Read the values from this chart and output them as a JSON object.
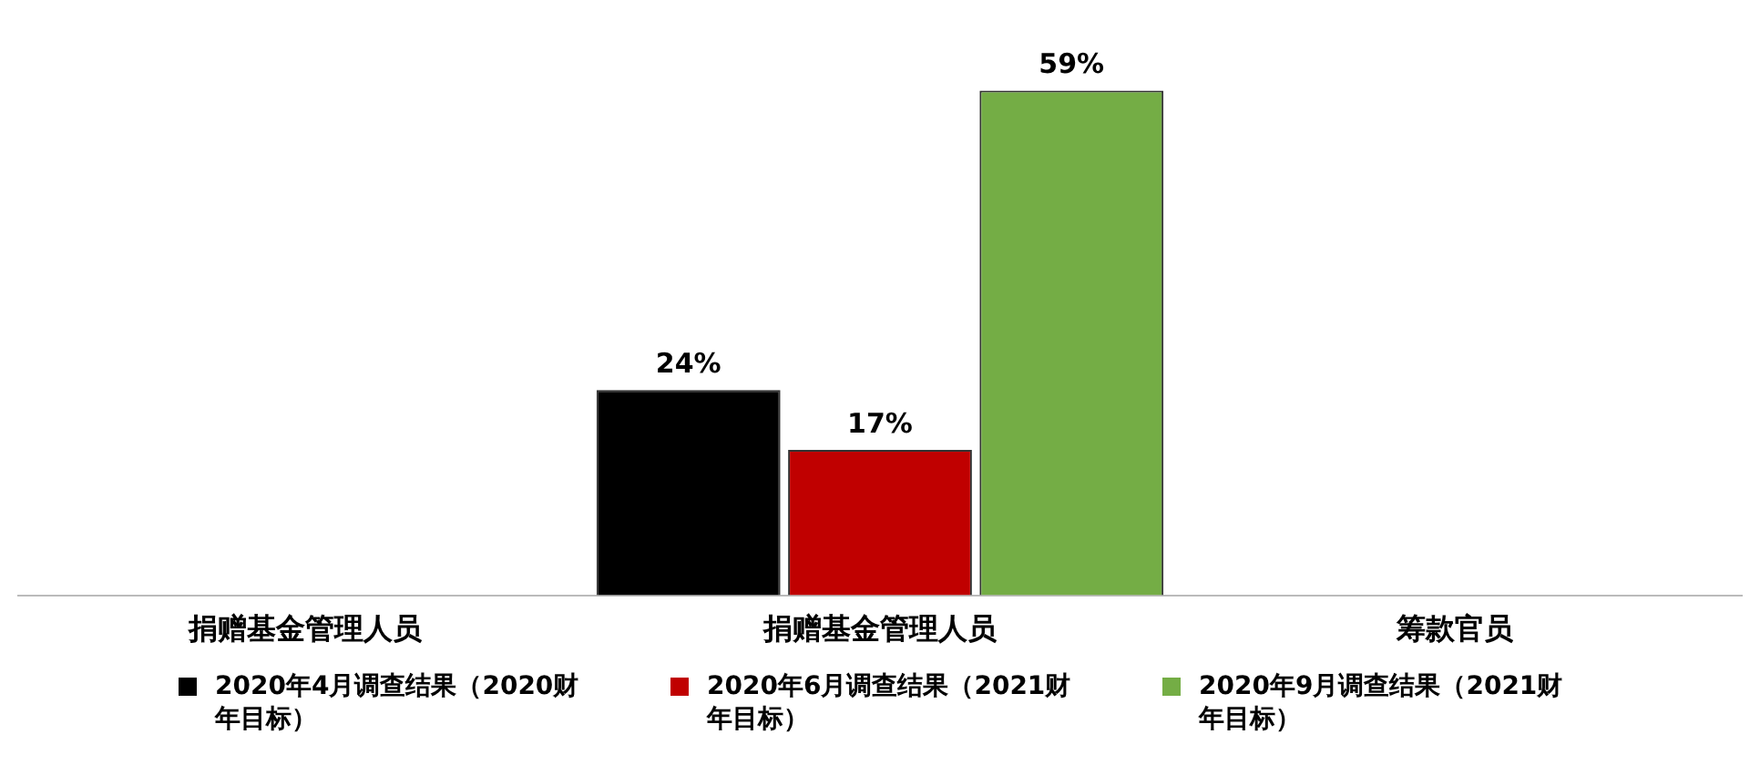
{
  "chart_data": {
    "type": "bar",
    "categories": [
      "捐赠基金管理人员",
      "捐赠基金管理人员",
      "筹款官员"
    ],
    "series": [
      {
        "name": "2020年4月调查结果（2020财年目标）",
        "color": "#000000",
        "values": [
          null,
          24,
          null
        ],
        "value_labels": [
          null,
          "24%",
          null
        ]
      },
      {
        "name": "2020年6月调查结果（2021财年目标）",
        "color": "#c00000",
        "values": [
          null,
          17,
          null
        ],
        "value_labels": [
          null,
          "17%",
          null
        ]
      },
      {
        "name": "2020年9月调查结果（2021财年目标）",
        "color": "#74ad45",
        "values": [
          null,
          59,
          null
        ],
        "value_labels": [
          null,
          "59%",
          null
        ]
      }
    ],
    "legend": "bottom",
    "grid": false
  }
}
